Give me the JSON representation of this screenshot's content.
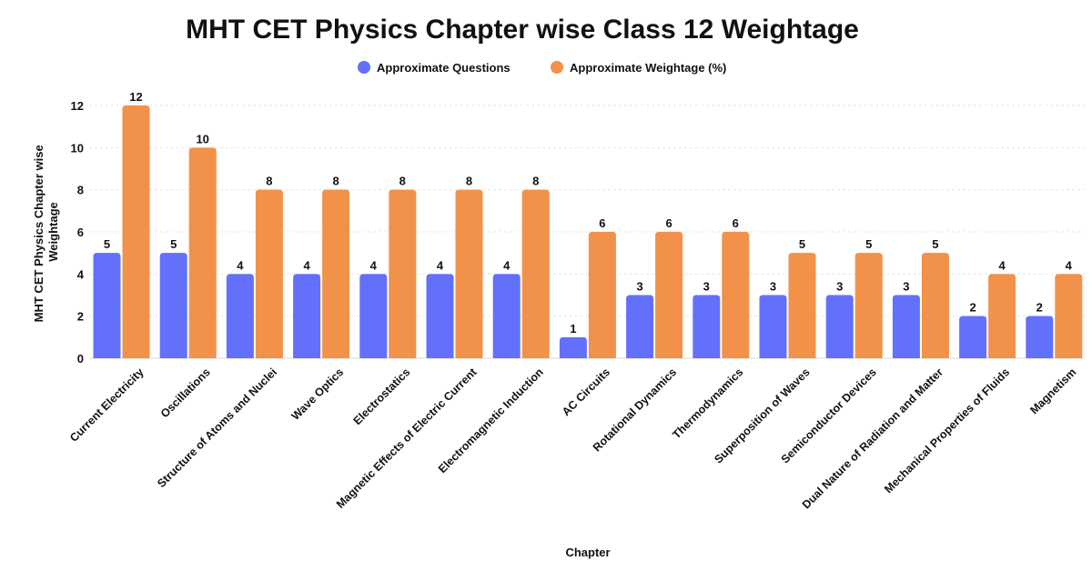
{
  "chart_data": {
    "type": "bar",
    "title": "MHT CET Physics Chapter wise Class 12 Weightage",
    "xlabel": "Chapter",
    "ylabel": [
      "MHT CET Physics Chapter wise",
      "Weightage"
    ],
    "ylim": [
      0,
      12
    ],
    "yticks": [
      0,
      2,
      4,
      6,
      8,
      10,
      12
    ],
    "grid": true,
    "legend_position": "top-center",
    "categories": [
      "Current Electricity",
      "Oscillations",
      "Structure of Atoms and Nuclei",
      "Wave Optics",
      "Electrostatics",
      "Magnetic Effects of Electric Current",
      "Electromagnetic Induction",
      "AC Circuits",
      "Rotational Dynamics",
      "Thermodynamics",
      "Superposition of Waves",
      "Semiconductor Devices",
      "Dual Nature of Radiation and Matter",
      "Mechanical Properties of Fluids",
      "Magnetism"
    ],
    "series": [
      {
        "name": "Approximate Questions",
        "color": "#6370fb",
        "values": [
          5,
          5,
          4,
          4,
          4,
          4,
          4,
          1,
          3,
          3,
          3,
          3,
          3,
          2,
          2
        ]
      },
      {
        "name": "Approximate Weightage (%)",
        "color": "#f2914a",
        "values": [
          12,
          10,
          8,
          8,
          8,
          8,
          8,
          6,
          6,
          6,
          5,
          5,
          5,
          4,
          4
        ]
      }
    ]
  }
}
